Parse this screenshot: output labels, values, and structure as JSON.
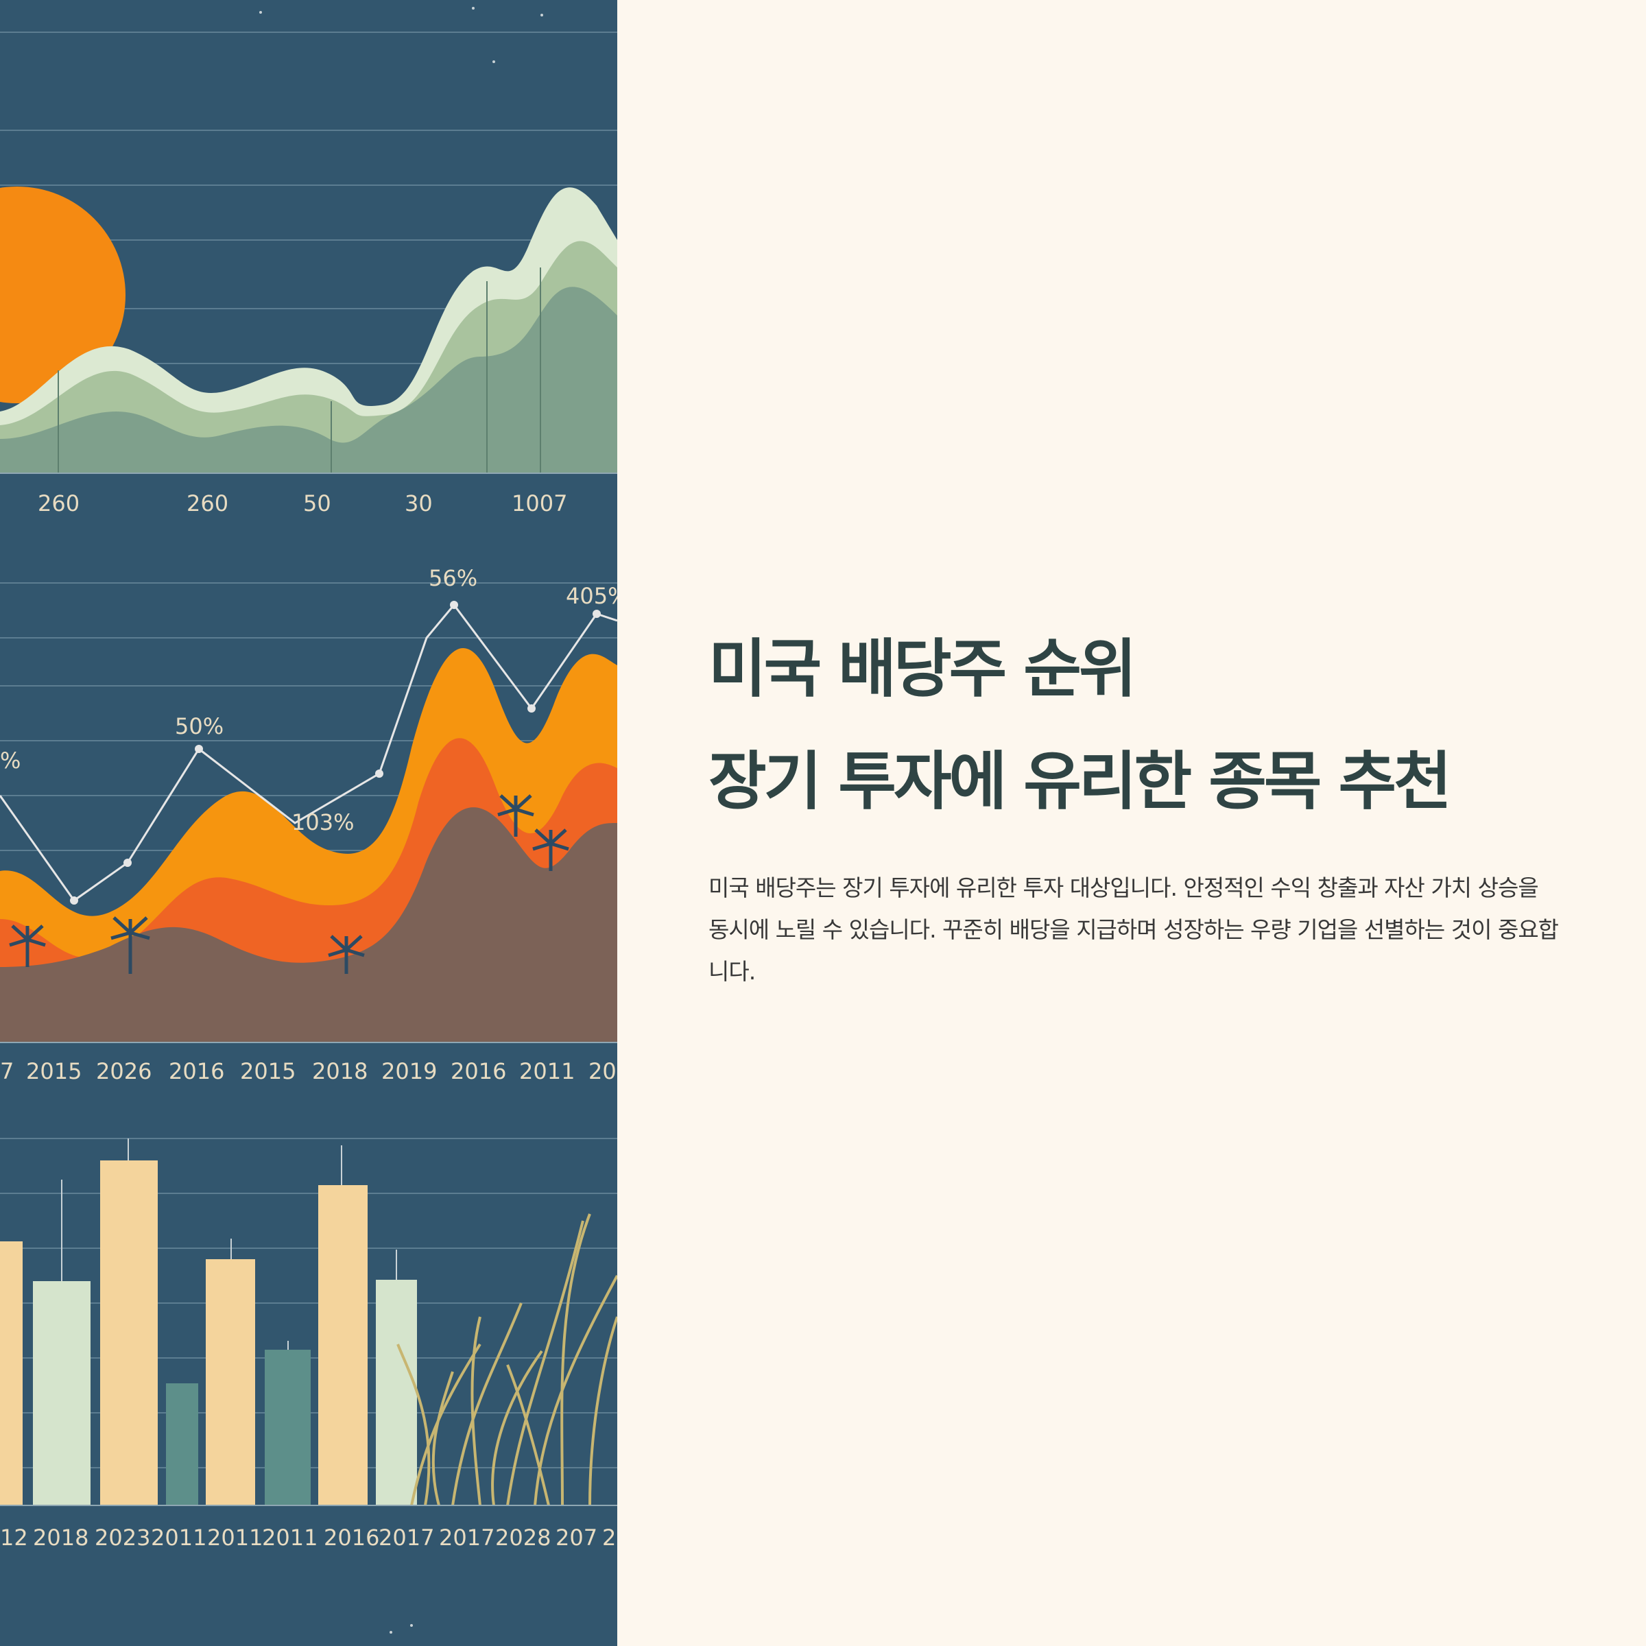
{
  "article": {
    "title_line1": "미국 배당주 순위",
    "title_line2": "장기 투자에 유리한 종목 추천",
    "body": "미국 배당주는 장기 투자에 유리한 투자 대상입니다. 안정적인 수익 창출과 자산 가치 상승을 동시에 노릴 수 있습니다. 꾸준히 배당을 지급하며 성장하는 우량 기업을 선별하는 것이 중요합니다."
  },
  "illustration": {
    "description_icon": "financial-charts-illustration",
    "top_chart": {
      "tick_labels": [
        "260",
        "260",
        "50",
        "30",
        "1007"
      ]
    },
    "middle_chart": {
      "point_labels": [
        "%",
        "50%",
        "103%",
        "56%",
        "405%"
      ],
      "tick_labels": [
        "7",
        "2015",
        "2026",
        "2016",
        "2015",
        "2018",
        "2019",
        "2016",
        "2011",
        "20"
      ]
    },
    "bottom_chart": {
      "tick_labels": [
        "12",
        "2018",
        "2023",
        "2011",
        "2011",
        "2011",
        "2016",
        "2017",
        "2017",
        "2028",
        "207",
        "2"
      ]
    },
    "colors": {
      "background": "#32566e",
      "sun": "#f58a12",
      "green_light": "#dce9d2",
      "green_mid": "#a9c39e",
      "green_dark": "#7fa08c",
      "orange": "#f6950f",
      "orange_red": "#ef6424",
      "brown": "#7c6257",
      "bar_cream": "#f4d49c",
      "bar_sage": "#d5e4cc",
      "bar_teal": "#5d8f8a",
      "grass": "#c8b671"
    }
  }
}
